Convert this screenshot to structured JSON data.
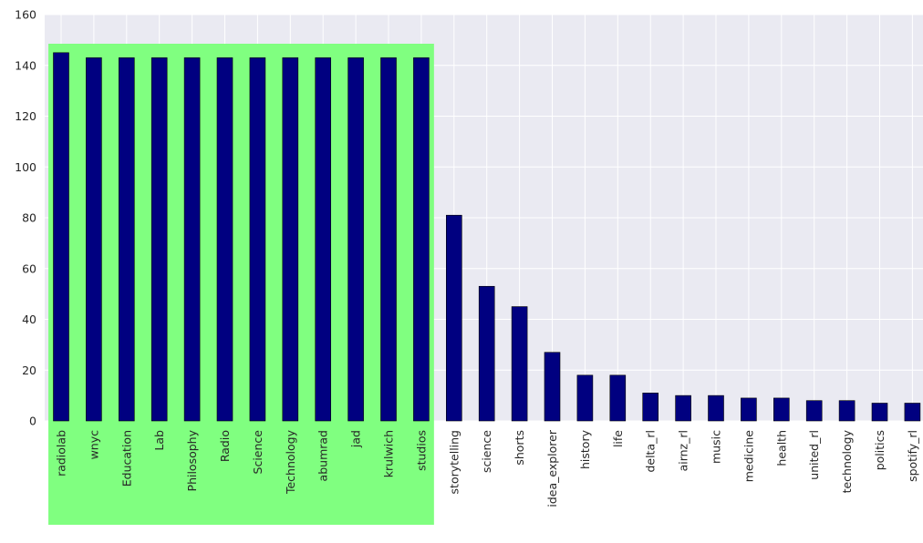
{
  "chart_data": {
    "type": "bar",
    "categories": [
      "radiolab",
      "wnyc",
      "Education",
      "Lab",
      "Philosophy",
      "Radio",
      "Science",
      "Technology",
      "abumrad",
      "jad",
      "krulwich",
      "studios",
      "storytelling",
      "science",
      "shorts",
      "idea_explorer",
      "history",
      "life",
      "delta_rl",
      "airnz_rl",
      "music",
      "medicine",
      "health",
      "united_rl",
      "technology",
      "politics",
      "spotify_rl"
    ],
    "values": [
      145,
      143,
      143,
      143,
      143,
      143,
      143,
      143,
      143,
      143,
      143,
      143,
      81,
      53,
      45,
      27,
      18,
      18,
      11,
      10,
      10,
      9,
      9,
      8,
      8,
      7,
      7
    ],
    "ylim": [
      0,
      160
    ],
    "yticks": [
      "0",
      "20",
      "40",
      "60",
      "80",
      "100",
      "120",
      "140",
      "160"
    ],
    "highlight": {
      "from_index": 0,
      "to_index": 11,
      "color": "#80ff80"
    },
    "bar_color": "#000080",
    "background_color": "#eaeaf2",
    "grid": true,
    "title": "",
    "xlabel": "",
    "ylabel": ""
  }
}
